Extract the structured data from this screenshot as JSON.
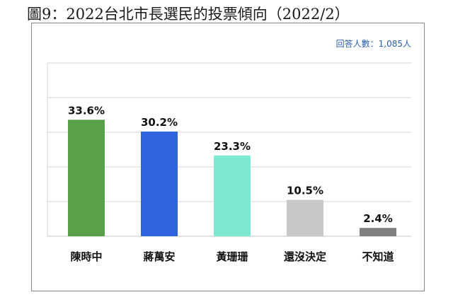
{
  "title": "圖9：2022台北市長選民的投票傾向（2022/2）",
  "note": "回答人數：1,085人",
  "chart_data": {
    "type": "bar",
    "categories": [
      "陳時中",
      "蔣萬安",
      "黃珊珊",
      "還沒決定",
      "不知道"
    ],
    "values": [
      33.6,
      30.2,
      23.3,
      10.5,
      2.4
    ],
    "value_labels": [
      "33.6%",
      "30.2%",
      "23.3%",
      "10.5%",
      "2.4%"
    ],
    "colors": [
      "#5aa04a",
      "#2f63e0",
      "#7fe8d2",
      "#c8c8c8",
      "#7f7f7f"
    ],
    "ylim": [
      0,
      50
    ],
    "grid": true,
    "xlabel": "",
    "ylabel": ""
  }
}
